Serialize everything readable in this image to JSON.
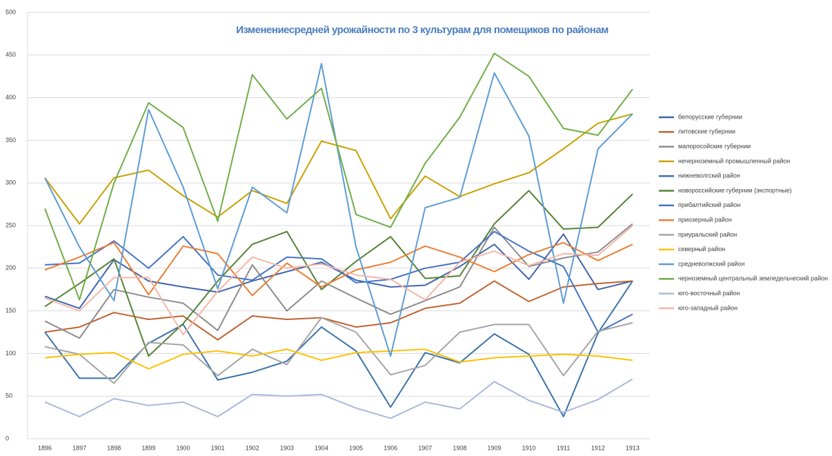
{
  "chart_data": {
    "type": "line",
    "title": "Изменениесредней урожайности по 3 культурам для помещиков по районам",
    "categories": [
      "1896",
      "1897",
      "1898",
      "1899",
      "1900",
      "1901",
      "1902",
      "1903",
      "1904",
      "1905",
      "1906",
      "1907",
      "1908",
      "1909",
      "1910",
      "1911",
      "1912",
      "1913"
    ],
    "ylim": [
      0,
      500
    ],
    "yticks": [
      0,
      50,
      100,
      150,
      200,
      250,
      300,
      350,
      400,
      450,
      500
    ],
    "grid": true,
    "legend": "right",
    "series": [
      {
        "name": "белорусские губернии",
        "color": "#3f64ad",
        "values": [
          167,
          153,
          210,
          185,
          178,
          172,
          185,
          196,
          207,
          186,
          178,
          180,
          202,
          228,
          187,
          240,
          175,
          185
        ]
      },
      {
        "name": "литовские губернии",
        "color": "#c0622f",
        "values": [
          125,
          131,
          148,
          140,
          144,
          116,
          144,
          140,
          142,
          131,
          136,
          153,
          159,
          185,
          161,
          178,
          182,
          185
        ]
      },
      {
        "name": "малоросойские губернии",
        "color": "#8c8c8c",
        "values": [
          138,
          118,
          175,
          166,
          159,
          127,
          204,
          150,
          185,
          165,
          146,
          162,
          178,
          248,
          202,
          212,
          219,
          252
        ]
      },
      {
        "name": "нечерноземный промышленный район",
        "color": "#c9a000",
        "values": [
          306,
          252,
          306,
          315,
          285,
          260,
          291,
          276,
          349,
          338,
          258,
          308,
          284,
          299,
          312,
          340,
          370,
          381
        ]
      },
      {
        "name": "нижневолгский район",
        "color": "#3a72a8",
        "values": [
          125,
          71,
          71,
          112,
          134,
          69,
          78,
          91,
          131,
          103,
          37,
          101,
          89,
          123,
          99,
          26,
          124,
          185
        ]
      },
      {
        "name": "новороссийские губернии (экспортные)",
        "color": "#548235",
        "values": [
          155,
          182,
          211,
          97,
          135,
          185,
          228,
          243,
          175,
          208,
          237,
          188,
          191,
          252,
          291,
          246,
          248,
          287
        ]
      },
      {
        "name": "прибалтийский район",
        "color": "#4472c4",
        "values": [
          204,
          206,
          232,
          200,
          237,
          192,
          186,
          213,
          211,
          183,
          187,
          200,
          207,
          243,
          220,
          202,
          125,
          146
        ]
      },
      {
        "name": "приозерный район",
        "color": "#ed7d31",
        "values": [
          198,
          213,
          230,
          169,
          226,
          217,
          168,
          206,
          178,
          198,
          207,
          226,
          213,
          196,
          216,
          230,
          209,
          228
        ]
      },
      {
        "name": "приуральский район",
        "color": "#a5a5a5",
        "values": [
          108,
          99,
          65,
          113,
          110,
          74,
          105,
          87,
          142,
          125,
          75,
          86,
          125,
          134,
          134,
          74,
          126,
          136
        ]
      },
      {
        "name": "северный район",
        "color": "#ffc000",
        "values": [
          95,
          99,
          101,
          82,
          99,
          103,
          97,
          105,
          92,
          101,
          103,
          105,
          90,
          95,
          97,
          99,
          97,
          92
        ]
      },
      {
        "name": "средневолжский район",
        "color": "#5b9bd5",
        "values": [
          306,
          225,
          162,
          386,
          295,
          176,
          295,
          265,
          440,
          225,
          97,
          271,
          283,
          429,
          355,
          159,
          340,
          381
        ]
      },
      {
        "name": "черноземный центральный земледельческий район",
        "color": "#70ad47",
        "values": [
          270,
          163,
          300,
          394,
          365,
          255,
          427,
          375,
          411,
          263,
          248,
          323,
          377,
          452,
          425,
          364,
          356,
          410
        ]
      },
      {
        "name": "юго-восточный район",
        "color": "#a9b8dd",
        "values": [
          43,
          26,
          47,
          39,
          43,
          26,
          52,
          50,
          52,
          36,
          24,
          43,
          35,
          67,
          45,
          31,
          46,
          70
        ]
      },
      {
        "name": "юго-западный район",
        "color": "#f4b6a6",
        "values": [
          165,
          150,
          189,
          189,
          122,
          173,
          213,
          200,
          205,
          192,
          187,
          163,
          207,
          220,
          203,
          217,
          215,
          250
        ]
      }
    ]
  }
}
